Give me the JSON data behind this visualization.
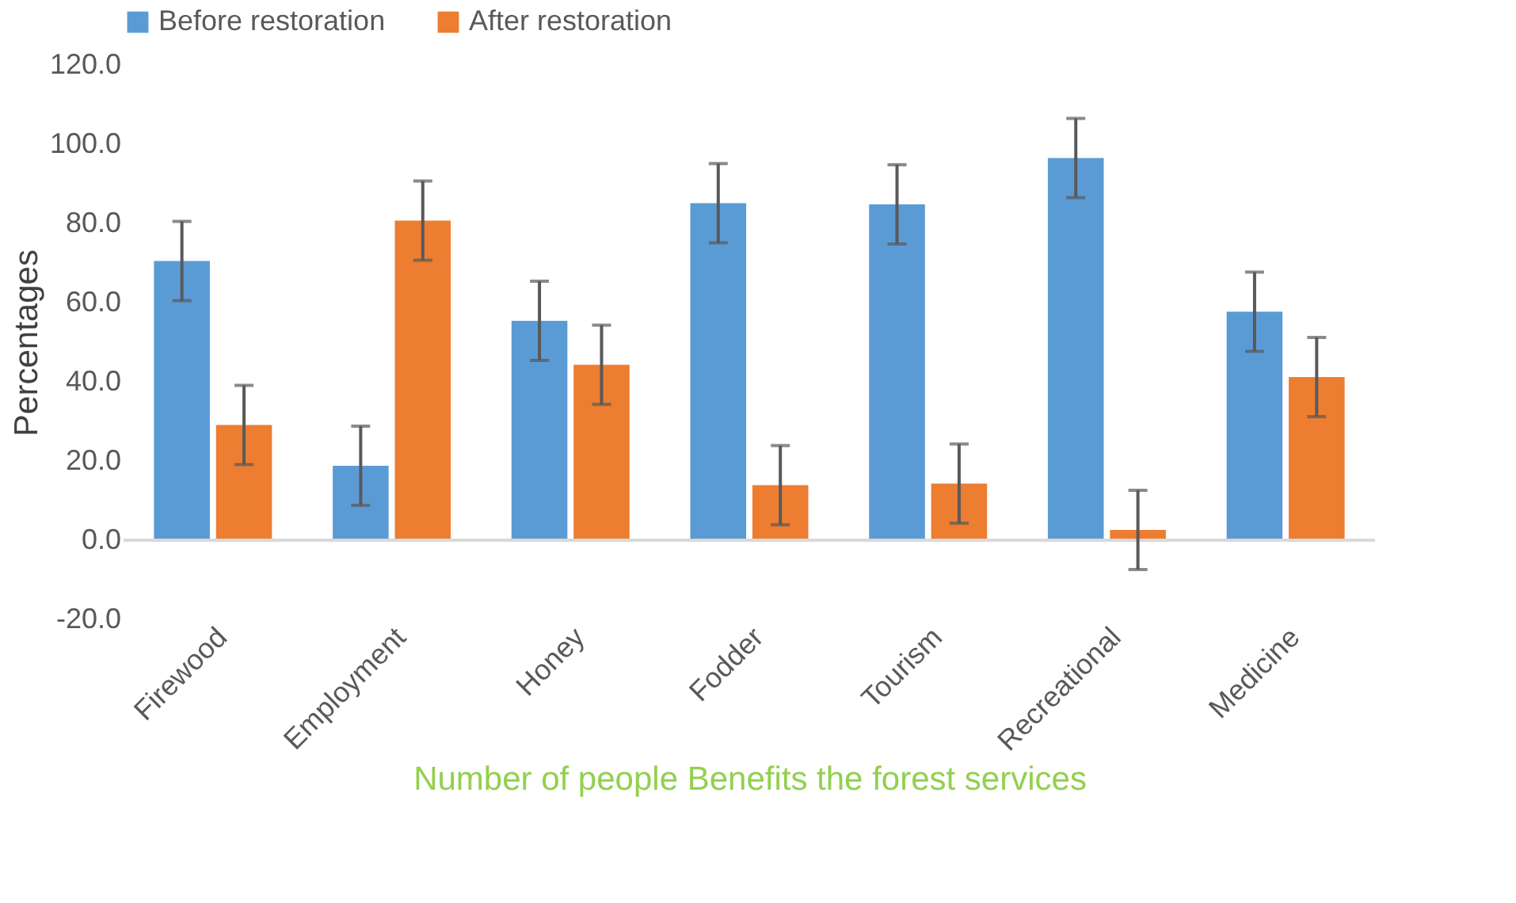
{
  "chart_data": {
    "type": "bar",
    "xlabel": "Number of people Benefits the forest services",
    "ylabel": "Percentages",
    "categories": [
      "Firewood",
      "Employment",
      "Honey",
      "Fodder",
      "Tourism",
      "Recreational",
      "Medicine"
    ],
    "series": [
      {
        "name": "Before restoration",
        "color": "#5b9bd5",
        "values": [
          70.5,
          18.8,
          55.4,
          85.1,
          84.8,
          96.5,
          57.7
        ],
        "errors": [
          10,
          10,
          10,
          10,
          10,
          10,
          10
        ]
      },
      {
        "name": "After restoration",
        "color": "#ed7d31",
        "values": [
          29.1,
          80.7,
          44.3,
          13.9,
          14.3,
          2.6,
          41.2
        ],
        "errors": [
          10,
          10,
          10,
          10,
          10,
          10,
          10
        ]
      }
    ],
    "ylim": [
      -20,
      120
    ],
    "yticks": [
      {
        "value": -20,
        "label": "-20.0"
      },
      {
        "value": 0,
        "label": "0.0"
      },
      {
        "value": 20,
        "label": "20.0"
      },
      {
        "value": 40,
        "label": "40.0"
      },
      {
        "value": 60,
        "label": "60.0"
      },
      {
        "value": 80,
        "label": "80.0"
      },
      {
        "value": 100,
        "label": "100.0"
      },
      {
        "value": 120,
        "label": "120.0"
      }
    ],
    "ref_lines": [
      {
        "axis": "y",
        "value": 0,
        "color": "#d9d9d9"
      }
    ],
    "grid": false,
    "legend": "top"
  }
}
